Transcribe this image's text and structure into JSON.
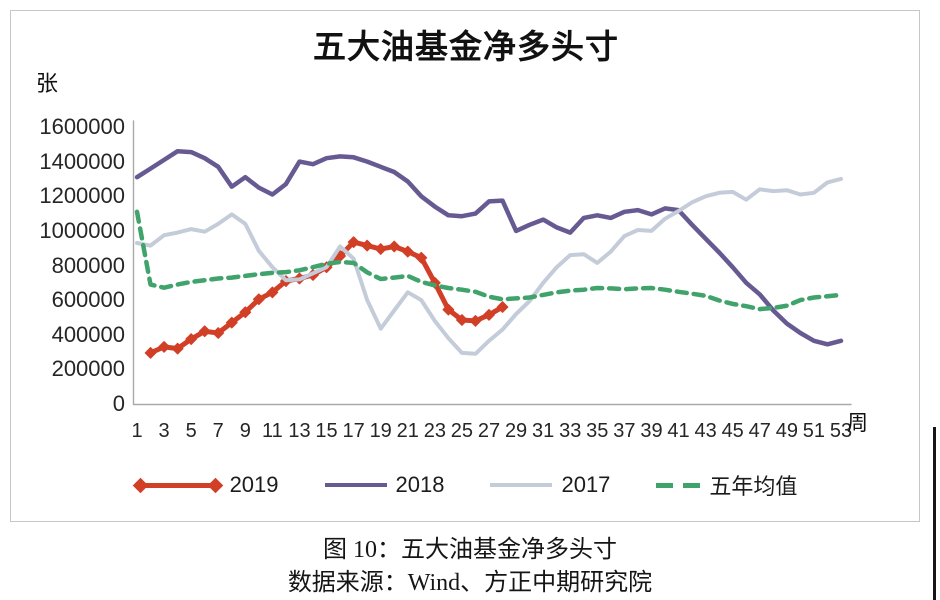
{
  "figure": {
    "title": "五大油基金净多头寸",
    "y_unit_label": "张",
    "x_unit_label": "周",
    "caption_line1": "图 10：五大油基金净多头寸",
    "caption_line2": "数据来源：Wind、方正中期研究院"
  },
  "colors": {
    "axis": "#a9a9a9",
    "tick_text": "#262626"
  },
  "chart_data": {
    "type": "line",
    "title": "五大油基金净多头寸",
    "xlabel": "周",
    "ylabel": "张",
    "ylim": [
      0,
      1600000
    ],
    "grid": false,
    "legend_position": "bottom",
    "y_ticks": [
      "1600000",
      "1400000",
      "1200000",
      "1000000",
      "800000",
      "600000",
      "400000",
      "200000",
      "0"
    ],
    "x_ticks": [
      "1",
      "3",
      "5",
      "7",
      "9",
      "11",
      "13",
      "15",
      "17",
      "19",
      "21",
      "23",
      "25",
      "27",
      "29",
      "31",
      "33",
      "35",
      "37",
      "39",
      "41",
      "43",
      "45",
      "47",
      "49",
      "51",
      "53"
    ],
    "x_weeks": [
      1,
      53
    ],
    "series": [
      {
        "name": "2019",
        "color": "#d23f27",
        "style": "solid-diamond-markers",
        "values": [
          null,
          295000,
          330000,
          320000,
          375000,
          420000,
          410000,
          470000,
          530000,
          605000,
          645000,
          710000,
          725000,
          745000,
          790000,
          855000,
          935000,
          915000,
          895000,
          910000,
          880000,
          845000,
          700000,
          545000,
          485000,
          480000,
          515000,
          560000,
          null,
          null,
          null,
          null,
          null,
          null,
          null,
          null,
          null,
          null,
          null,
          null,
          null,
          null,
          null,
          null,
          null,
          null,
          null,
          null,
          null,
          null,
          null,
          null,
          null
        ]
      },
      {
        "name": "2018",
        "color": "#675a92",
        "style": "solid",
        "values": [
          1310000,
          1360000,
          1410000,
          1460000,
          1455000,
          1420000,
          1370000,
          1255000,
          1310000,
          1250000,
          1210000,
          1270000,
          1400000,
          1385000,
          1420000,
          1430000,
          1425000,
          1400000,
          1370000,
          1340000,
          1285000,
          1200000,
          1140000,
          1090000,
          1085000,
          1100000,
          1170000,
          1175000,
          1000000,
          1035000,
          1065000,
          1020000,
          990000,
          1075000,
          1090000,
          1075000,
          1110000,
          1120000,
          1095000,
          1130000,
          1120000,
          1035000,
          955000,
          875000,
          790000,
          700000,
          633000,
          540000,
          465000,
          410000,
          365000,
          345000,
          365000
        ]
      },
      {
        "name": "2017",
        "color": "#c3ccd8",
        "style": "solid",
        "values": [
          930000,
          915000,
          975000,
          990000,
          1010000,
          995000,
          1040000,
          1095000,
          1040000,
          885000,
          790000,
          715000,
          720000,
          755000,
          790000,
          910000,
          840000,
          600000,
          435000,
          540000,
          645000,
          600000,
          480000,
          380000,
          295000,
          290000,
          365000,
          430000,
          520000,
          595000,
          700000,
          790000,
          860000,
          865000,
          815000,
          880000,
          970000,
          1005000,
          1000000,
          1070000,
          1115000,
          1165000,
          1200000,
          1220000,
          1225000,
          1180000,
          1240000,
          1230000,
          1235000,
          1210000,
          1220000,
          1280000,
          1300000
        ]
      },
      {
        "name": "五年均值",
        "color": "#41a36c",
        "style": "dashed",
        "values": [
          1110000,
          690000,
          672000,
          690000,
          705000,
          715000,
          725000,
          730000,
          740000,
          750000,
          758000,
          762000,
          772000,
          790000,
          810000,
          820000,
          815000,
          760000,
          722000,
          730000,
          740000,
          705000,
          685000,
          670000,
          660000,
          648000,
          620000,
          605000,
          610000,
          615000,
          630000,
          645000,
          655000,
          660000,
          670000,
          668000,
          663000,
          668000,
          670000,
          660000,
          648000,
          637000,
          625000,
          598000,
          578000,
          565000,
          548000,
          555000,
          568000,
          600000,
          615000,
          622000,
          630000
        ]
      }
    ]
  }
}
